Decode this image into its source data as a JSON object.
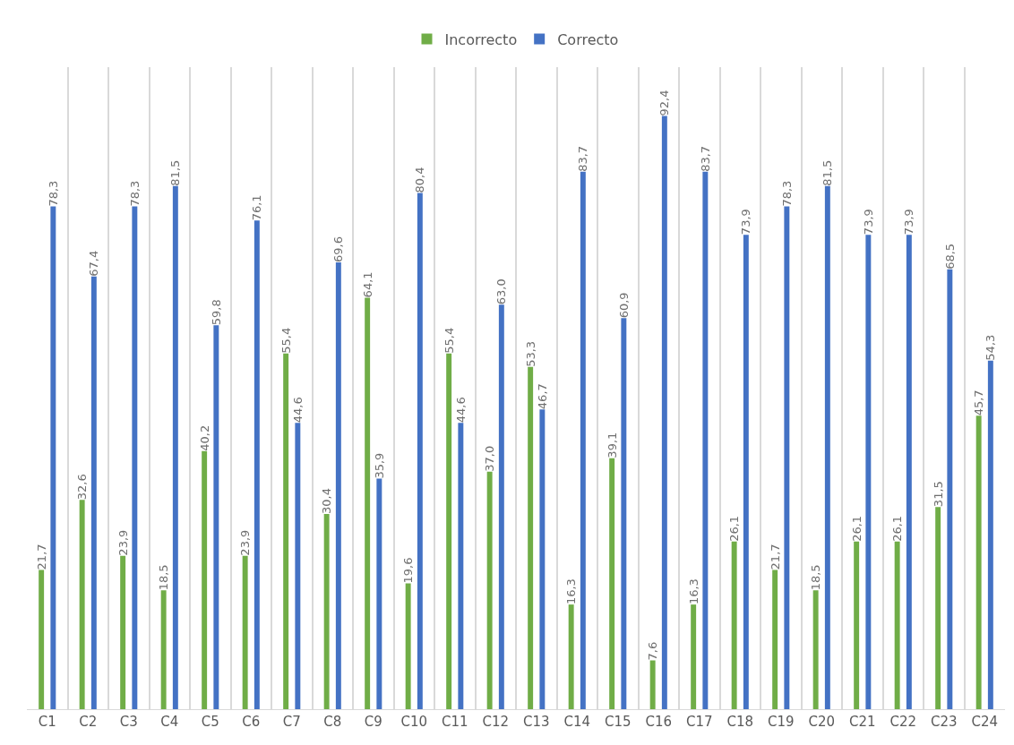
{
  "chart_data": {
    "type": "bar",
    "categories": [
      "C1",
      "C2",
      "C3",
      "C4",
      "C5",
      "C6",
      "C7",
      "C8",
      "C9",
      "C10",
      "C11",
      "C12",
      "C13",
      "C14",
      "C15",
      "C16",
      "C17",
      "C18",
      "C19",
      "C20",
      "C21",
      "C22",
      "C23",
      "C24"
    ],
    "series": [
      {
        "name": "Incorrecto",
        "color": "#70ad47",
        "values": [
          21.7,
          32.6,
          23.9,
          18.5,
          40.2,
          23.9,
          55.4,
          30.4,
          64.1,
          19.6,
          55.4,
          37.0,
          53.3,
          16.3,
          39.1,
          7.6,
          16.3,
          26.1,
          21.7,
          18.5,
          26.1,
          26.1,
          31.5,
          45.7
        ],
        "value_labels": [
          "21,7",
          "32,6",
          "23,9",
          "18,5",
          "40,2",
          "23,9",
          "55,4",
          "30,4",
          "64,1",
          "19,6",
          "55,4",
          "37,0",
          "53,3",
          "16,3",
          "39,1",
          "7,6",
          "16,3",
          "26,1",
          "21,7",
          "18,5",
          "26,1",
          "26,1",
          "31,5",
          "45,7"
        ]
      },
      {
        "name": "Correcto",
        "color": "#4472c4",
        "values": [
          78.3,
          67.4,
          78.3,
          81.5,
          59.8,
          76.1,
          44.6,
          69.6,
          35.9,
          80.4,
          44.6,
          63.0,
          46.7,
          83.7,
          60.9,
          92.4,
          83.7,
          73.9,
          78.3,
          81.5,
          73.9,
          73.9,
          68.5,
          54.3
        ],
        "value_labels": [
          "78,3",
          "67,4",
          "78,3",
          "81,5",
          "59,8",
          "76,1",
          "44,6",
          "69,6",
          "35,9",
          "80,4",
          "44,6",
          "63,0",
          "46,7",
          "83,7",
          "60,9",
          "92,4",
          "83,7",
          "73,9",
          "78,3",
          "81,5",
          "73,9",
          "73,9",
          "68,5",
          "54,3"
        ]
      }
    ],
    "ylim": [
      0,
      100
    ],
    "grid": "x",
    "legend": "top",
    "tick_labels": "x"
  }
}
